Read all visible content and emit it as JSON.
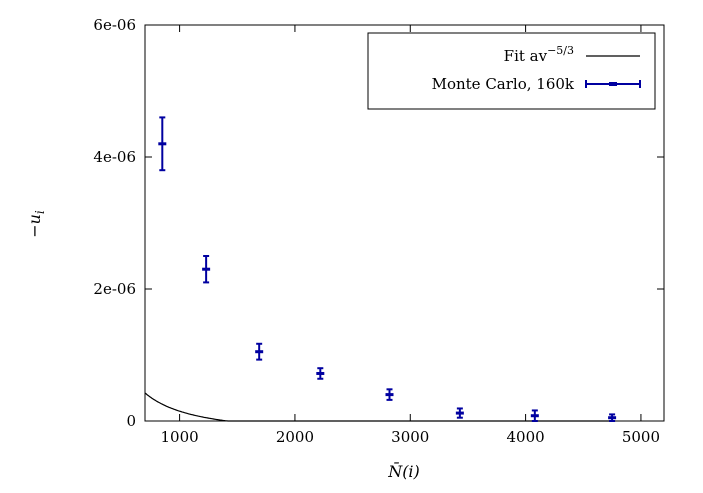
{
  "chart_data": {
    "type": "scatter",
    "xlabel": "N̄(i)",
    "ylabel": "−u",
    "ylabel_sub": "i",
    "xlim": [
      700,
      5200
    ],
    "ylim": [
      0,
      6e-06
    ],
    "x_ticks": [
      1000,
      2000,
      3000,
      4000,
      5000
    ],
    "x_tick_labels": [
      "1000",
      "2000",
      "3000",
      "4000",
      "5000"
    ],
    "y_ticks": [
      0,
      2e-06,
      4e-06,
      6e-06
    ],
    "y_tick_labels": [
      "0",
      "2e-06",
      "4e-06",
      "6e-06"
    ],
    "legend_position": "top-right",
    "series": [
      {
        "name": "Monte Carlo, 160k",
        "kind": "errorbar",
        "color": "#0000a0",
        "x": [
          850,
          1230,
          1690,
          2220,
          2820,
          3430,
          4080,
          4750
        ],
        "y": [
          4.2e-06,
          2.3e-06,
          1.05e-06,
          7.2e-07,
          4e-07,
          1.2e-07,
          8e-08,
          5e-08
        ],
        "err": [
          4e-07,
          2e-07,
          1.2e-07,
          8e-08,
          8e-08,
          7e-08,
          8e-08,
          5e-08
        ]
      },
      {
        "name": "Fit av",
        "name_sup": "−5/3",
        "kind": "line",
        "color": "#000000",
        "formula": "a*x^(-5/3) - c",
        "a": 0.0339,
        "c": 1.9e-07,
        "x_range": [
          700,
          4750
        ]
      }
    ]
  }
}
